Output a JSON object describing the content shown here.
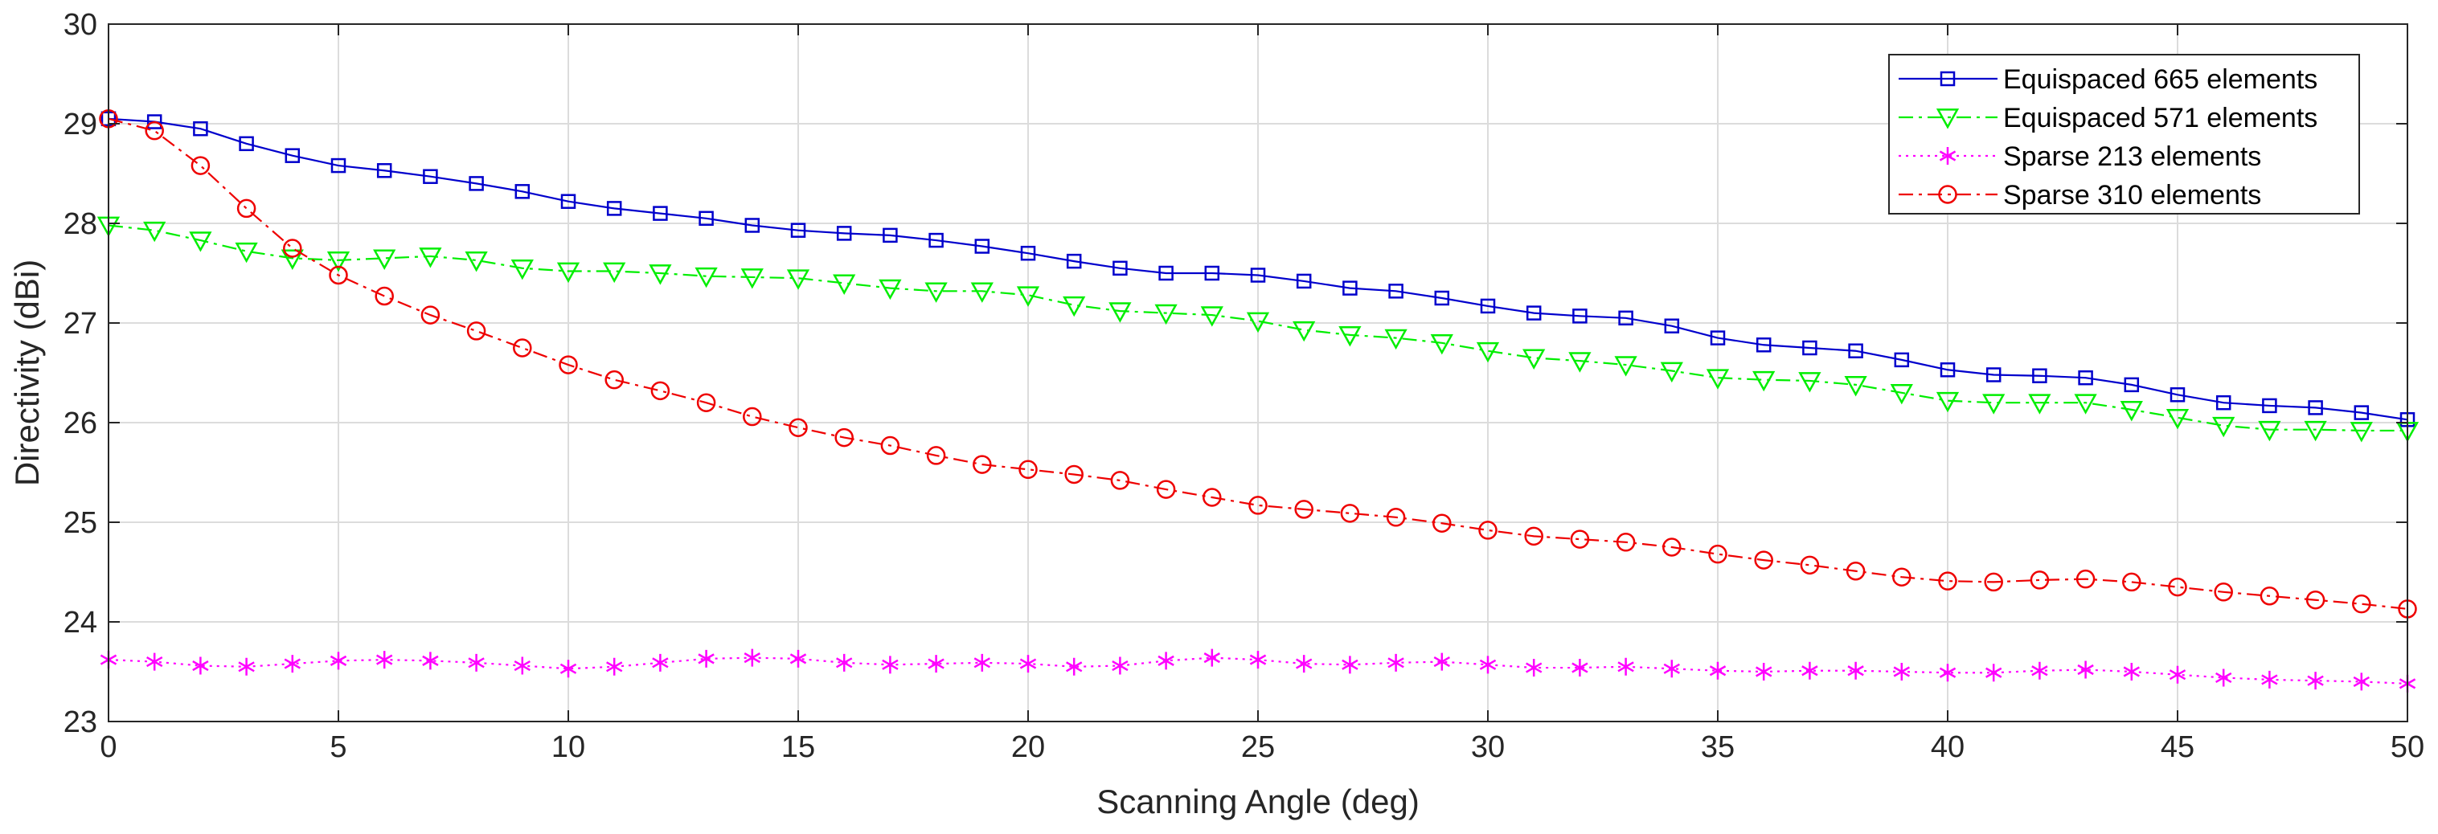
{
  "chart_data": {
    "type": "line",
    "title": "",
    "xlabel": "Scanning Angle (deg)",
    "ylabel": "Directivity (dBi)",
    "xlim": [
      0,
      50
    ],
    "ylim": [
      23,
      30
    ],
    "xticks": [
      "0",
      "5",
      "10",
      "15",
      "20",
      "25",
      "30",
      "35",
      "40",
      "45",
      "50"
    ],
    "yticks": [
      "23",
      "24",
      "25",
      "26",
      "27",
      "28",
      "29",
      "30"
    ],
    "grid": true,
    "legend_position": "top-right",
    "x": [
      0,
      1,
      2,
      3,
      4,
      5,
      6,
      7,
      8,
      9,
      10,
      11,
      12,
      13,
      14,
      15,
      16,
      17,
      18,
      19,
      20,
      21,
      22,
      23,
      24,
      25,
      26,
      27,
      28,
      29,
      30,
      31,
      32,
      33,
      34,
      35,
      36,
      37,
      38,
      39,
      40,
      41,
      42,
      43,
      44,
      45,
      46,
      47,
      48,
      49,
      50
    ],
    "series": [
      {
        "name": "Equispaced 665 elements",
        "color": "#0000cc",
        "dash": "solid",
        "marker": "square",
        "values": [
          29.05,
          29.02,
          28.95,
          28.8,
          28.68,
          28.58,
          28.53,
          28.47,
          28.4,
          28.32,
          28.22,
          28.15,
          28.1,
          28.05,
          27.98,
          27.93,
          27.9,
          27.88,
          27.83,
          27.77,
          27.7,
          27.62,
          27.55,
          27.5,
          27.5,
          27.48,
          27.42,
          27.35,
          27.32,
          27.25,
          27.17,
          27.1,
          27.07,
          27.05,
          26.97,
          26.85,
          26.78,
          26.75,
          26.72,
          26.63,
          26.53,
          26.48,
          26.47,
          26.45,
          26.38,
          26.28,
          26.2,
          26.17,
          26.15,
          26.1,
          26.03
        ]
      },
      {
        "name": "Equispaced 571 elements",
        "color": "#00ee00",
        "dash": "dashdot",
        "marker": "triangle-down",
        "values": [
          27.98,
          27.93,
          27.83,
          27.72,
          27.65,
          27.63,
          27.65,
          27.67,
          27.63,
          27.55,
          27.52,
          27.52,
          27.5,
          27.47,
          27.46,
          27.45,
          27.4,
          27.35,
          27.32,
          27.32,
          27.28,
          27.18,
          27.12,
          27.1,
          27.08,
          27.02,
          26.93,
          26.88,
          26.85,
          26.8,
          26.72,
          26.65,
          26.62,
          26.58,
          26.52,
          26.45,
          26.43,
          26.42,
          26.38,
          26.3,
          26.22,
          26.2,
          26.2,
          26.2,
          26.13,
          26.05,
          25.97,
          25.93,
          25.93,
          25.92,
          25.92
        ]
      },
      {
        "name": "Sparse 213 elements",
        "color": "#ff00ff",
        "dash": "dotted",
        "marker": "asterisk",
        "values": [
          23.62,
          23.6,
          23.56,
          23.55,
          23.58,
          23.61,
          23.62,
          23.61,
          23.59,
          23.56,
          23.53,
          23.55,
          23.59,
          23.63,
          23.64,
          23.63,
          23.59,
          23.57,
          23.58,
          23.59,
          23.58,
          23.55,
          23.56,
          23.61,
          23.64,
          23.62,
          23.58,
          23.57,
          23.59,
          23.6,
          23.57,
          23.54,
          23.54,
          23.55,
          23.53,
          23.51,
          23.5,
          23.51,
          23.51,
          23.5,
          23.49,
          23.49,
          23.51,
          23.52,
          23.5,
          23.47,
          23.44,
          23.42,
          23.41,
          23.4,
          23.38
        ]
      },
      {
        "name": "Sparse 310 elements",
        "color": "#ee0000",
        "dash": "dashdot",
        "marker": "circle",
        "values": [
          29.05,
          28.93,
          28.58,
          28.15,
          27.75,
          27.48,
          27.27,
          27.08,
          26.92,
          26.75,
          26.58,
          26.43,
          26.32,
          26.2,
          26.06,
          25.95,
          25.85,
          25.77,
          25.67,
          25.58,
          25.53,
          25.48,
          25.42,
          25.33,
          25.25,
          25.17,
          25.13,
          25.09,
          25.05,
          24.99,
          24.92,
          24.86,
          24.83,
          24.8,
          24.75,
          24.68,
          24.62,
          24.57,
          24.51,
          24.45,
          24.41,
          24.4,
          24.42,
          24.43,
          24.4,
          24.35,
          24.3,
          24.26,
          24.22,
          24.18,
          24.13
        ]
      }
    ]
  }
}
